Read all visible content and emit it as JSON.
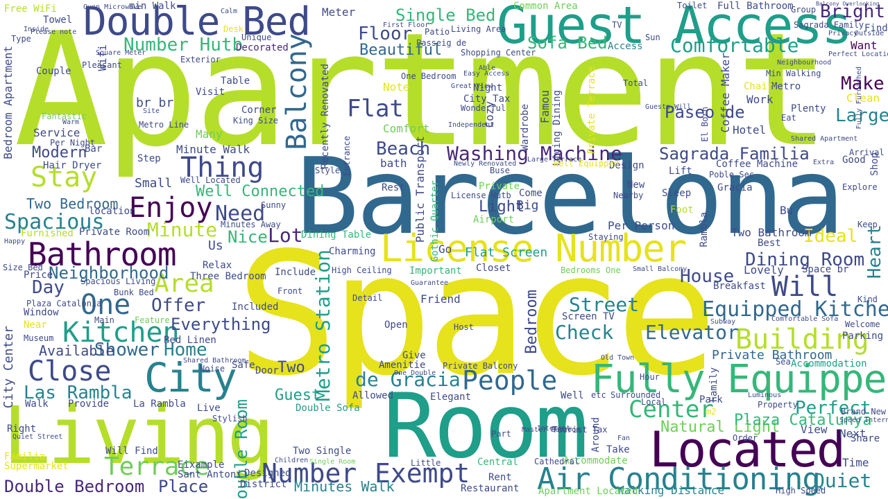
{
  "palette": {
    "yellow": "#e6e21c",
    "lime": "#b5de2b",
    "light_green": "#6ece58",
    "green": "#35b779",
    "teal": "#1f9e89",
    "blue": "#26828e",
    "steel": "#31688e",
    "indigo": "#3e4a89",
    "violet": "#482878",
    "dark": "#440154"
  },
  "words": {
    "apartment": "Apartment",
    "barcelona": "Barcelona",
    "space": "Space",
    "room": "Room",
    "living": "Living",
    "guest_access": "Guest Access",
    "double_bed": "Double Bed",
    "license_number": "License Number",
    "located": "Located",
    "fully_equipped": "Fully Equipped",
    "air_conditioning": "Air Conditioning",
    "bathroom": "Bathroom",
    "kitchen": "Kitchen",
    "city": "City",
    "close": "Close",
    "people": "People",
    "number": "Number",
    "exempt": "Exempt",
    "terrace": "Terrace",
    "double_bedroom": "Double Bedroom",
    "place": "Place",
    "stay": "Stay",
    "enjoy": "Enjoy",
    "thing": "Thing",
    "balcony": "Balcony",
    "sofa_bed": "Sofa Bed",
    "comfortable": "Comfortable",
    "single_bed": "Single Bed",
    "flat": "Flat",
    "modern": "Modern",
    "washing_machine": "Washing Machine",
    "sagrada_familia": "Sagrada Familia",
    "one": "One",
    "area": "Area",
    "building": "Building",
    "equipped_kitchen": "Equipped Kitchen",
    "will": "Will",
    "dining_room": "Dining Room",
    "street": "Street",
    "elevator": "Elevator",
    "check": "Check",
    "center": "Center",
    "quiet": "Quiet",
    "perfect": "Perfect",
    "natural_light": "Natural Light",
    "plaza_catalunya": "Plaza Catalunya",
    "bright": "Bright",
    "make": "Make",
    "large": "Large",
    "heart": "Heart",
    "ideal": "Ideal",
    "house": "House",
    "shower": "Shower",
    "home": "Home",
    "everything": "Everything",
    "offer": "Offer",
    "day": "Day",
    "neighborhood": "Neighborhood",
    "spacious": "Spacious",
    "two_bedroom": "Two Bedroom",
    "minute": "Minute",
    "need": "Need",
    "well_connected": "Well Connected",
    "nice": "Nice",
    "lot": "Lot",
    "beach": "Beach",
    "beautiful": "Beautiful",
    "floor": "Floor",
    "number_hutb": "Number Hutb",
    "metro_station": "Metro Station",
    "de_gracia": "de Gracia",
    "las_rambla": "Las Rambla",
    "minutes_walk": "Minutes Walk",
    "walking_distance": "Walking Distance",
    "private_bathroom": "Private Bathroom",
    "two": "Two",
    "guest": "Guest",
    "available": "Available",
    "double_room": "Double Room",
    "dining_table": "Dining Table",
    "flat_screen": "Flat Screen",
    "public_transport": "Public Transport",
    "bedroom": "Bedroom",
    "light": "Light",
    "private": "Private",
    "airport": "Airport",
    "paseo_de": "Paseo de",
    "coffee_maker": "Coffee Maker",
    "hotel": "Hotel",
    "work": "Work",
    "metro": "Metro",
    "clean": "Clean",
    "plenty": "Plenty",
    "want": "Want",
    "find": "Find",
    "common_area": "Common Area",
    "full_bathroom": "Full Bathroom",
    "free_wifi": "Free WiFi",
    "towel": "Towel",
    "min_walk": "min Walk",
    "meter": "Meter",
    "access": "Access",
    "decorated": "Decorated",
    "table": "Table",
    "visit": "Visit",
    "comfort": "Comfort",
    "note": "Note",
    "cozy": "Cozy",
    "wardrobe": "Wardrobe",
    "city_tax": "City Tax",
    "night": "Night",
    "service": "Service",
    "hair_dryer": "Hair Dryer",
    "small": "Small",
    "well_located": "Well Located",
    "minute_walk": "Minute Walk",
    "bath": "bath",
    "coffee_machine": "Coffee Machine",
    "good": "Good",
    "lift": "Lift",
    "design": "Design",
    "new": "New",
    "per_person": "Per Person",
    "foot": "Foot",
    "two_bathroom": "Two Bathroom",
    "private_room": "Private Room",
    "furnished": "Furnished",
    "relax": "Relax",
    "three_bedroom": "Three Bedroom",
    "window": "Window",
    "price": "Price",
    "near": "Near",
    "include": "Include",
    "important": "Important",
    "charming": "Charming",
    "closet": "Closet",
    "friend": "Friend",
    "open": "Open",
    "included": "Included",
    "screen_tv": "Screen TV",
    "bed_linen": "Bed Linen",
    "breakfast": "Breakfast",
    "lovely": "Lovely",
    "best": "Best",
    "space_br": "Space br",
    "well": "Well",
    "park": "Park",
    "view": "View",
    "next": "Next",
    "share": "Share",
    "time": "Time",
    "accommodation": "Accommodation",
    "family": "Family",
    "parking": "Parking",
    "welcome": "Welcome",
    "around": "Around",
    "take": "Take",
    "accommodate": "Accommodate",
    "restaurant": "Restaurant",
    "apartment_located": "Apartment Located",
    "rent": "Rent",
    "central": "Central",
    "designed": "Designed",
    "district": "District",
    "two_single": "Two Single",
    "double_sofa": "Double Sofa",
    "allowed": "Allowed",
    "sant_antoni": "Sant Antoni",
    "eixample": "Eixample",
    "will_find": "Will Find",
    "la_rambla": "La Rambla",
    "provide": "Provide",
    "walk": "Walk",
    "right": "Right",
    "live": "Live",
    "supermarket": "Supermarket",
    "familia": "Familia",
    "safe": "Safe",
    "door": "Door",
    "elegant": "Elegant",
    "amenitie": "Amenitie",
    "give": "Give",
    "private_balcony": "Private Balcony",
    "go": "Go",
    "rest": "Rest",
    "big": "Big",
    "come": "Come",
    "license_hutb": "License Hutb",
    "gothic_quarter": "Gothic Quarter",
    "recently_renovated": "Recently Renovated",
    "bar": "Bar",
    "step": "Step",
    "famous": "Famou",
    "living_dining": "Living Dining",
    "chair": "Chair",
    "group": "Group",
    "toilet": "Toilet",
    "passeig_de": "Passeig de",
    "patio": "Patio",
    "shopping_center": "Shopping Center",
    "sun": "Sun",
    "tv": "TV",
    "living_area": "Living Area",
    "first_floor": "First Floor",
    "exterior": "Exterior",
    "unique": "Unique",
    "pleasant": "Pleasant",
    "couple": "Couple",
    "per_night": "Per Night",
    "fantastic": "Fantastic",
    "br_br": "br br",
    "wifi": "Wifi",
    "bedroom_apartment": "Bedroom Apartment",
    "center_city": "City Center",
    "private_terrace": "Private Terrace",
    "sagrada_family": "Sagrada Family",
    "bedrooms_one": "Bedrooms One",
    "comfortable_sofa": "Comfortable Sofa",
    "small_balcony": "Small Balcony",
    "subway": "Subway",
    "high_ceiling": "High Ceiling",
    "surrounded": "Surrounded",
    "local": "Local",
    "m2": "m2",
    "old_town": "Old Town",
    "hour": "Hour",
    "kind": "Kind",
    "sea": "Sea",
    "order": "Order",
    "quiet_street": "Quiet Street",
    "high_speed": "High Speed",
    "brand_new": "Brand New",
    "speed_internet": "Speed Internet",
    "poble_sec": "Poble Sec",
    "el_born": "El Born",
    "one_bedroom": "One Bedroom",
    "min_walking": "Min Walking",
    "gracia": "Gracia",
    "sleep": "Sleep",
    "bu": "Bu",
    "keep": "Keep",
    "explore": "Explore",
    "shop": "Shop",
    "arrival": "Arrival",
    "outside": "Outside",
    "privacy": "Privacy",
    "perfect_location": "Perfect Location",
    "shared_apartment": "Shared Apartment",
    "eat": "Eat",
    "rambla": "Rambla",
    "super_bed": "Bed",
    "staying": "Staying",
    "well_equipped": "Well Equipped",
    "big_terrace": "Large Terrace",
    "nearby": "Nearby",
    "sunny": "Sunny",
    "minutes_away": "Minutes Away",
    "location": "location",
    "us": "Us",
    "size_bed": "Size Bed",
    "happy": "Happy",
    "bunk_bed": "Bunk Bed",
    "main": "Main",
    "museum": "Museum",
    "spacious_living": "Spacious Living",
    "plaza_catalonia": "Plaza Catalonia",
    "feature": "Feature",
    "shared_bathroom": "Shared Bathroom",
    "noise": "Noise",
    "stylish": "Stylish",
    "tourist_tax": "Tourist Tax",
    "cathedral": "Cathedral",
    "little": "Little",
    "children": "Children",
    "single_room": "Single Room",
    "part": "Part",
    "host": "Host",
    "detail": "Detail",
    "front": "Front",
    "guarantee": "Guarantee",
    "one_double": "One Double",
    "etc": "etc",
    "internet": "Internet",
    "luminous": "Luminous",
    "property": "Property",
    "fan": "Fan",
    "master_bedroom": "Master Bedroom",
    "oven_microwave": "Oven Microwave",
    "please_note": "Please note",
    "inside": "Inside",
    "type": "Type",
    "square_meter": "Square Meter",
    "metro_line": "Metro Line",
    "site": "Site",
    "warm": "Warm",
    "many": "Many",
    "corner": "Corner",
    "king_size": "King Size",
    "total": "Total",
    "independent": "Independent",
    "wonderful": "Wonderful",
    "great_view": "Great View",
    "easy_access": "Easy Access",
    "able": "Able",
    "entrance": "Entrance",
    "style": "Style",
    "newly_renovated": "Newly Renovated",
    "buse": "Buse",
    "big_large": "Large Terrace",
    "guests_will": "Guests Will",
    "extra": "Extra",
    "calm": "Calm",
    "desk": "Desk",
    "fully_furnished": "Fully Furnished",
    "neighbourhood": "Neighbourhood",
    "balcony_overlooking": "Balcony Overlooking"
  }
}
